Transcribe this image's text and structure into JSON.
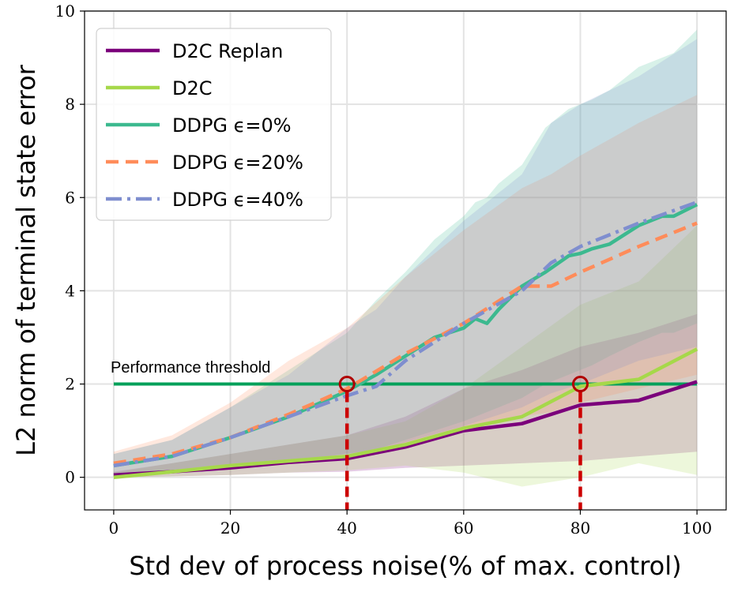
{
  "chart_data": {
    "type": "line",
    "title": "",
    "xlabel": "Std dev of process noise(% of max. control)",
    "ylabel": "L2 norm of terminal state error",
    "xlim": [
      -5,
      105
    ],
    "ylim": [
      -0.7,
      10
    ],
    "xticks": [
      0,
      20,
      40,
      60,
      80,
      100
    ],
    "yticks": [
      0,
      2,
      4,
      6,
      8,
      10
    ],
    "grid": true,
    "legend_position": "top-left",
    "series": [
      {
        "name": "D2C Replan",
        "color": "#7b007b",
        "dash": "solid",
        "x": [
          0,
          10,
          20,
          30,
          40,
          50,
          60,
          70,
          80,
          90,
          100
        ],
        "y": [
          0.05,
          0.12,
          0.2,
          0.32,
          0.4,
          0.65,
          1.0,
          1.15,
          1.55,
          1.65,
          2.05
        ],
        "band_lower": [
          0.0,
          0.02,
          0.05,
          0.1,
          0.12,
          0.2,
          0.25,
          0.3,
          0.35,
          0.45,
          0.55
        ],
        "band_upper": [
          0.12,
          0.3,
          0.5,
          0.7,
          0.9,
          1.3,
          1.9,
          2.3,
          2.8,
          3.1,
          3.5
        ]
      },
      {
        "name": "D2C",
        "color": "#a6d84a",
        "dash": "solid",
        "x": [
          0,
          10,
          20,
          30,
          40,
          50,
          60,
          70,
          80,
          90,
          100
        ],
        "y": [
          0.0,
          0.12,
          0.25,
          0.35,
          0.45,
          0.7,
          1.05,
          1.3,
          1.95,
          2.1,
          2.75
        ],
        "band_lower": [
          0.0,
          0.02,
          0.05,
          0.1,
          0.15,
          0.25,
          0.1,
          -0.2,
          0.0,
          0.3,
          0.05
        ],
        "band_upper": [
          0.1,
          0.3,
          0.5,
          0.7,
          0.9,
          1.2,
          1.9,
          2.8,
          3.7,
          4.2,
          5.4
        ]
      },
      {
        "name": "DDPG ϵ=0%",
        "color": "#3cb98f",
        "dash": "solid",
        "x": [
          0,
          10,
          20,
          30,
          40,
          45,
          50,
          55,
          60,
          62,
          64,
          66,
          70,
          74,
          78,
          80,
          82,
          85,
          90,
          94,
          96,
          100
        ],
        "y": [
          0.25,
          0.45,
          0.85,
          1.3,
          1.85,
          2.2,
          2.6,
          3.0,
          3.2,
          3.4,
          3.3,
          3.6,
          4.1,
          4.4,
          4.75,
          4.8,
          4.9,
          5.0,
          5.4,
          5.6,
          5.6,
          5.85
        ],
        "band_lower": [
          0.0,
          0.1,
          0.2,
          0.35,
          0.5,
          0.6,
          0.8,
          1.0,
          1.2,
          1.3,
          1.4,
          1.5,
          1.7,
          2.0,
          2.2,
          2.3,
          2.4,
          2.6,
          2.9,
          3.1,
          3.1,
          3.3
        ],
        "band_upper": [
          0.5,
          0.8,
          1.5,
          2.3,
          3.1,
          3.8,
          4.4,
          5.1,
          5.6,
          5.9,
          6.0,
          6.3,
          6.7,
          7.5,
          7.9,
          8.0,
          8.1,
          8.3,
          8.8,
          9.0,
          9.1,
          9.6
        ]
      },
      {
        "name": "DDPG ϵ=20%",
        "color": "#ff8c5a",
        "dash": "dashed",
        "x": [
          0,
          10,
          20,
          30,
          40,
          50,
          60,
          70,
          75,
          80,
          90,
          100
        ],
        "y": [
          0.3,
          0.5,
          0.85,
          1.35,
          1.9,
          2.65,
          3.3,
          4.1,
          4.1,
          4.4,
          4.95,
          5.45
        ],
        "band_lower": [
          0.0,
          0.1,
          0.2,
          0.35,
          0.5,
          0.7,
          1.0,
          1.3,
          1.4,
          1.6,
          1.9,
          2.2
        ],
        "band_upper": [
          0.55,
          0.9,
          1.6,
          2.5,
          3.2,
          4.3,
          5.3,
          6.2,
          6.5,
          6.9,
          7.6,
          8.2
        ]
      },
      {
        "name": "DDPG ϵ=40%",
        "color": "#7f8ecf",
        "dash": "dashdot",
        "x": [
          0,
          10,
          20,
          30,
          40,
          45,
          50,
          60,
          70,
          75,
          80,
          90,
          100
        ],
        "y": [
          0.25,
          0.45,
          0.85,
          1.3,
          1.75,
          1.95,
          2.5,
          3.3,
          4.0,
          4.6,
          4.95,
          5.45,
          5.9
        ],
        "band_lower": [
          0.0,
          0.1,
          0.2,
          0.35,
          0.5,
          0.55,
          0.75,
          1.1,
          1.5,
          1.8,
          2.0,
          2.5,
          2.8
        ],
        "band_upper": [
          0.5,
          0.8,
          1.5,
          2.2,
          3.2,
          3.6,
          4.3,
          5.5,
          6.5,
          7.6,
          8.0,
          8.6,
          9.4
        ]
      }
    ],
    "threshold": {
      "label": "Performance threshold",
      "y": 2.0,
      "x_start": 0,
      "x_end": 100,
      "color": "#00a05a"
    },
    "markers": [
      {
        "x": 40,
        "y": 2.0,
        "color": "#b00000"
      },
      {
        "x": 80,
        "y": 2.0,
        "color": "#b00000"
      }
    ],
    "drop_line_color": "#cc0000"
  }
}
